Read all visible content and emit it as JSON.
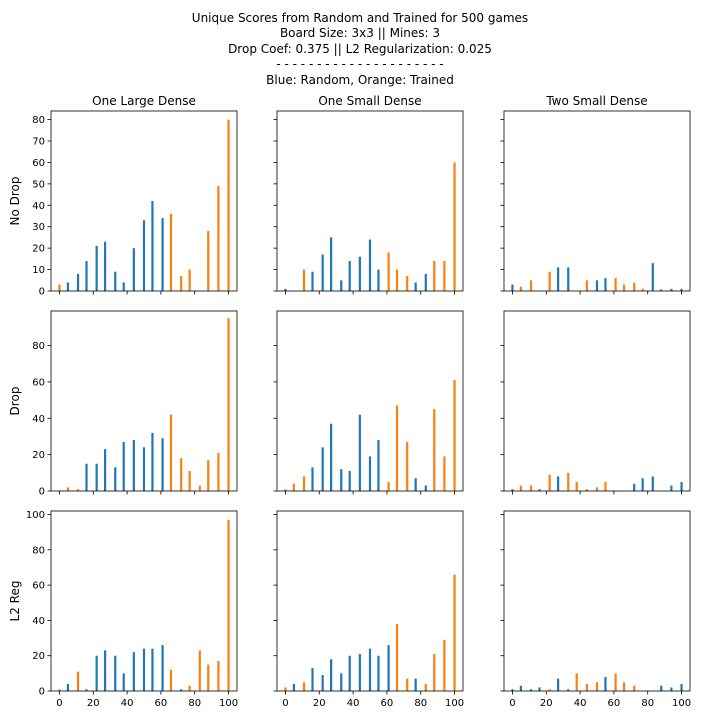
{
  "title_lines": [
    "Unique Scores from Random and Trained for 500 games",
    "Board Size: 3x3 || Mines: 3",
    "Drop Coef: 0.375 || L2 Regularization: 0.025",
    "- - - - - - - - - - - - - - - - - - - - -",
    "Blue: Random, Orange: Trained"
  ],
  "column_titles": [
    "One Large Dense",
    "One Small Dense",
    "Two Small Dense"
  ],
  "row_labels": [
    "No Drop",
    "Drop",
    "L2 Reg"
  ],
  "colors": {
    "random": "#1f77b4",
    "trained": "#ff7f0e"
  },
  "chart_data": {
    "type": "bar",
    "grid": false,
    "x_ticks": [
      0,
      20,
      40,
      60,
      80,
      100
    ],
    "xlim": [
      -5,
      105
    ],
    "rows": [
      {
        "label": "No Drop",
        "ylim": [
          0,
          84
        ],
        "y_ticks": [
          0,
          10,
          20,
          30,
          40,
          50,
          60,
          70,
          80
        ]
      },
      {
        "label": "Drop",
        "ylim": [
          0,
          99
        ],
        "y_ticks": [
          0,
          20,
          40,
          60,
          80
        ]
      },
      {
        "label": "L2 Reg",
        "ylim": [
          0,
          102
        ],
        "y_ticks": [
          0,
          20,
          40,
          60,
          80,
          100
        ]
      }
    ],
    "panels": [
      {
        "row": "No Drop",
        "column": "One Large Dense",
        "series": [
          {
            "name": "Random",
            "x": [
              5,
              11,
              16,
              22,
              27,
              33,
              38,
              44,
              50,
              55,
              61
            ],
            "values": [
              4,
              8,
              14,
              21,
              23,
              9,
              4,
              20,
              33,
              42,
              34
            ]
          },
          {
            "name": "Trained",
            "x": [
              0,
              66,
              72,
              77,
              88,
              94,
              100
            ],
            "values": [
              3,
              36,
              7,
              10,
              28,
              49,
              80
            ]
          }
        ]
      },
      {
        "row": "No Drop",
        "column": "One Small Dense",
        "series": [
          {
            "name": "Random",
            "x": [
              0,
              16,
              22,
              27,
              33,
              38,
              44,
              50,
              55,
              77,
              83
            ],
            "values": [
              1,
              9,
              17,
              25,
              5,
              14,
              16,
              24,
              10,
              4,
              8
            ]
          },
          {
            "name": "Trained",
            "x": [
              11,
              61,
              66,
              72,
              88,
              94,
              100
            ],
            "values": [
              10,
              18,
              10,
              7,
              14,
              14,
              60
            ]
          }
        ]
      },
      {
        "row": "No Drop",
        "column": "Two Small Dense",
        "series": [
          {
            "name": "Random",
            "x": [
              0,
              27,
              33,
              50,
              55,
              83,
              94,
              100
            ],
            "values": [
              3,
              11,
              11,
              5,
              6,
              13,
              1,
              1
            ]
          },
          {
            "name": "Trained",
            "x": [
              5,
              11,
              22,
              44,
              61,
              66,
              72,
              77,
              88
            ],
            "values": [
              2,
              5,
              9,
              5,
              6,
              3,
              4,
              1,
              1
            ]
          }
        ]
      },
      {
        "row": "Drop",
        "column": "One Large Dense",
        "series": [
          {
            "name": "Random",
            "x": [
              16,
              22,
              27,
              33,
              38,
              44,
              50,
              55,
              61
            ],
            "values": [
              15,
              15,
              23,
              13,
              27,
              28,
              24,
              32,
              29
            ]
          },
          {
            "name": "Trained",
            "x": [
              5,
              11,
              66,
              72,
              77,
              83,
              88,
              94,
              100
            ],
            "values": [
              2,
              1,
              42,
              18,
              11,
              3,
              17,
              21,
              95
            ]
          }
        ]
      },
      {
        "row": "Drop",
        "column": "One Small Dense",
        "series": [
          {
            "name": "Random",
            "x": [
              16,
              22,
              27,
              33,
              38,
              44,
              50,
              55,
              77,
              83
            ],
            "values": [
              13,
              24,
              37,
              12,
              11,
              42,
              19,
              28,
              7,
              3
            ]
          },
          {
            "name": "Trained",
            "x": [
              0,
              5,
              11,
              61,
              66,
              72,
              88,
              94,
              100
            ],
            "values": [
              1,
              4,
              8,
              5,
              47,
              27,
              45,
              19,
              61
            ]
          }
        ]
      },
      {
        "row": "Drop",
        "column": "Two Small Dense",
        "series": [
          {
            "name": "Random",
            "x": [
              0,
              16,
              27,
              72,
              77,
              83,
              94,
              100
            ],
            "values": [
              1,
              1,
              8,
              4,
              7,
              8,
              3,
              5
            ]
          },
          {
            "name": "Trained",
            "x": [
              5,
              11,
              22,
              33,
              38,
              44,
              50,
              55
            ],
            "values": [
              3,
              3,
              9,
              10,
              5,
              1,
              2,
              5
            ]
          }
        ]
      },
      {
        "row": "L2 Reg",
        "column": "One Large Dense",
        "series": [
          {
            "name": "Random",
            "x": [
              5,
              16,
              22,
              27,
              33,
              38,
              44,
              50,
              55,
              61,
              72
            ],
            "values": [
              4,
              1,
              20,
              23,
              20,
              10,
              22,
              24,
              24,
              26,
              1
            ]
          },
          {
            "name": "Trained",
            "x": [
              0,
              11,
              66,
              77,
              83,
              88,
              94,
              100
            ],
            "values": [
              1,
              11,
              12,
              3,
              23,
              15,
              17,
              97
            ]
          }
        ]
      },
      {
        "row": "L2 Reg",
        "column": "One Small Dense",
        "series": [
          {
            "name": "Random",
            "x": [
              5,
              16,
              22,
              27,
              33,
              38,
              44,
              50,
              55,
              61,
              77
            ],
            "values": [
              4,
              13,
              9,
              18,
              10,
              20,
              21,
              24,
              20,
              26,
              7
            ]
          },
          {
            "name": "Trained",
            "x": [
              0,
              11,
              66,
              72,
              83,
              88,
              94,
              100
            ],
            "values": [
              2,
              5,
              38,
              7,
              4,
              21,
              29,
              66
            ]
          }
        ]
      },
      {
        "row": "L2 Reg",
        "column": "Two Small Dense",
        "series": [
          {
            "name": "Random",
            "x": [
              0,
              5,
              11,
              16,
              27,
              33,
              55,
              88,
              94,
              100
            ],
            "values": [
              1,
              3,
              1,
              2,
              7,
              1,
              8,
              3,
              2,
              4
            ]
          },
          {
            "name": "Trained",
            "x": [
              22,
              38,
              44,
              50,
              61,
              66,
              72
            ],
            "values": [
              1,
              10,
              4,
              5,
              10,
              5,
              3
            ]
          }
        ]
      }
    ]
  }
}
